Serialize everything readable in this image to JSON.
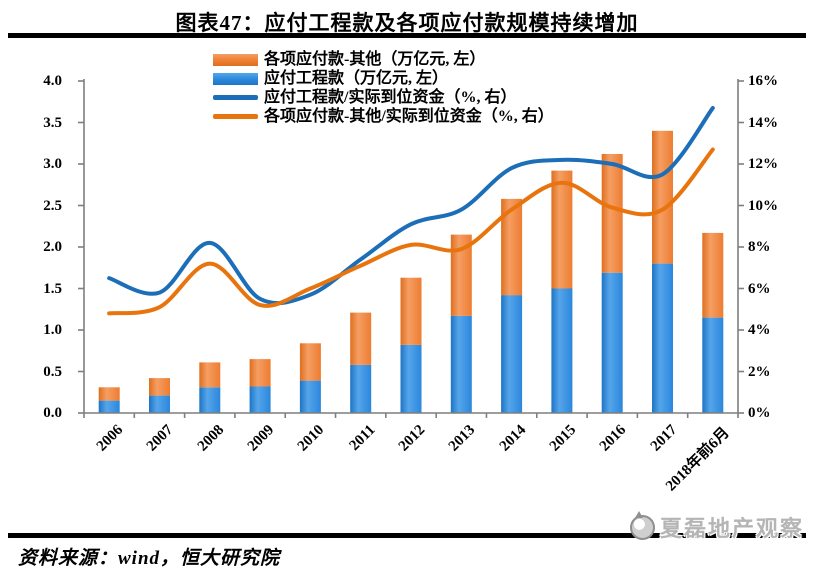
{
  "title": "图表47：应付工程款及各项应付款规模持续增加",
  "source_note": "资料来源：wind，恒大研究院",
  "watermark": {
    "text": "夏磊地产观察",
    "icon": "publisher-logo-icon"
  },
  "colors": {
    "bar_blue": "#2B87DC",
    "bar_blue_light": "#55A5EA",
    "bar_blue_dark": "#1E74C4",
    "bar_orange": "#ED7D31",
    "bar_orange_light": "#F59E63",
    "bar_orange_dark": "#DE6F1F",
    "line_blue": "#1C6EB8",
    "line_orange": "#E8740E",
    "axis_gray": "#7F7F7F",
    "rule_black": "#000000"
  },
  "legend": [
    {
      "label": "各项应付款-其他（万亿元, 左）",
      "swatch": "bar",
      "color": "#ED7D31"
    },
    {
      "label": "应付工程款（万亿元, 左）",
      "swatch": "bar",
      "color": "#2B87DC"
    },
    {
      "label": "应付工程款/实际到位资金（%, 右）",
      "swatch": "line",
      "color": "#1C6EB8"
    },
    {
      "label": "各项应付款-其他/实际到位资金（%, 右）",
      "swatch": "line",
      "color": "#E8740E"
    }
  ],
  "chart_data": {
    "type": "combo-stacked-bar-line",
    "categories": [
      "2006",
      "2007",
      "2008",
      "2009",
      "2010",
      "2011",
      "2012",
      "2013",
      "2014",
      "2015",
      "2016",
      "2017",
      "2018年前6月"
    ],
    "bar_series": [
      {
        "name": "应付工程款（万亿元, 左）",
        "axis": "left",
        "color": "#2B87DC",
        "values": [
          0.15,
          0.21,
          0.31,
          0.32,
          0.39,
          0.58,
          0.82,
          1.17,
          1.42,
          1.5,
          1.69,
          1.8,
          1.15
        ]
      },
      {
        "name": "各项应付款-其他（万亿元, 左）",
        "axis": "left",
        "color": "#ED7D31",
        "values": [
          0.16,
          0.21,
          0.3,
          0.33,
          0.45,
          0.63,
          0.81,
          0.98,
          1.16,
          1.42,
          1.43,
          1.6,
          1.02
        ]
      }
    ],
    "line_series": [
      {
        "name": "应付工程款/实际到位资金（%, 右）",
        "axis": "right",
        "color": "#1C6EB8",
        "values": [
          6.5,
          5.8,
          8.2,
          5.5,
          5.7,
          7.4,
          9.1,
          9.8,
          11.8,
          12.2,
          12.0,
          11.5,
          14.7
        ]
      },
      {
        "name": "各项应付款-其他/实际到位资金（%, 右）",
        "axis": "right",
        "color": "#E8740E",
        "values": [
          4.8,
          5.1,
          7.2,
          5.2,
          6.0,
          7.1,
          8.1,
          7.9,
          9.8,
          11.1,
          9.9,
          9.8,
          12.7
        ]
      }
    ],
    "left_axis": {
      "min": 0,
      "max": 4,
      "step": 0.5,
      "tick_labels": [
        "0.0",
        "0.5",
        "1.0",
        "1.5",
        "2.0",
        "2.5",
        "3.0",
        "3.5",
        "4.0"
      ]
    },
    "right_axis": {
      "min": 0,
      "max": 16,
      "step": 2,
      "tick_labels": [
        "0%",
        "2%",
        "4%",
        "6%",
        "8%",
        "10%",
        "12%",
        "14%",
        "16%"
      ]
    },
    "grid": false,
    "legend_position": "top-center-inside",
    "bar_stacked": true
  }
}
